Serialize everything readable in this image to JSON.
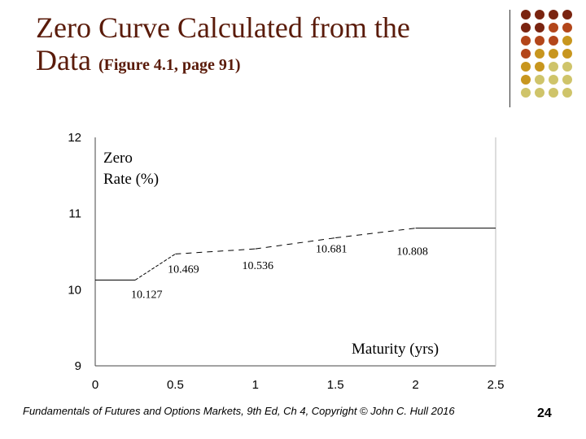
{
  "slide": {
    "title_line1": "Zero Curve Calculated from the",
    "title_line2": "Data",
    "title_sub": "(Figure 4.1, page 91)",
    "footer": "Fundamentals of Futures and Options Markets, 9th Ed, Ch 4, Copyright © John C. Hull 2016",
    "page_number": "24",
    "title_color": "#5a1b0a",
    "dot_colors": [
      "#7a2410",
      "#b3461a",
      "#c8961e",
      "#cfc46a"
    ]
  },
  "chart_data": {
    "type": "line",
    "ylabel": "Zero Rate (%)",
    "ylabel_lines": [
      "Zero",
      "Rate (%)"
    ],
    "xlabel": "Maturity (yrs)",
    "xlim": [
      0,
      2.5
    ],
    "ylim": [
      9,
      12
    ],
    "x_ticks": [
      "0",
      "0.5",
      "1",
      "1.5",
      "2",
      "2.5"
    ],
    "y_ticks": [
      "9",
      "10",
      "11",
      "12"
    ],
    "series": [
      {
        "points": [
          {
            "x": 0,
            "y": 10.127
          },
          {
            "x": 0.25,
            "y": 10.127
          },
          {
            "x": 0.5,
            "y": 10.469
          },
          {
            "x": 1.0,
            "y": 10.536
          },
          {
            "x": 1.5,
            "y": 10.681
          },
          {
            "x": 2.0,
            "y": 10.808
          },
          {
            "x": 2.5,
            "y": 10.808
          }
        ]
      }
    ],
    "data_labels": [
      {
        "text": "10.127",
        "x": 0.25,
        "y": 10.127
      },
      {
        "text": "10.469",
        "x": 0.5,
        "y": 10.469
      },
      {
        "text": "10.536",
        "x": 1.0,
        "y": 10.536
      },
      {
        "text": "10.681",
        "x": 1.5,
        "y": 10.681
      },
      {
        "text": "10.808",
        "x": 2.0,
        "y": 10.808
      }
    ],
    "grid": false
  }
}
